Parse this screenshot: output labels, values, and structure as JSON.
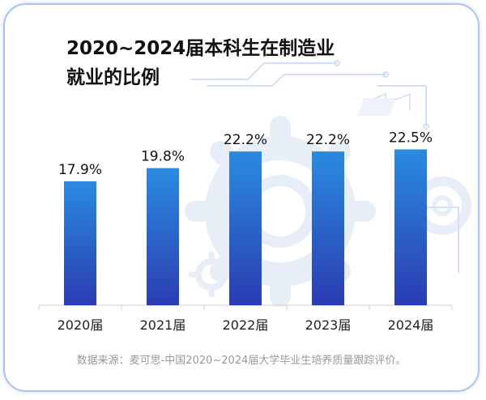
{
  "chart_data": {
    "type": "bar",
    "title_lines": [
      "2020~2024届本科生在制造业",
      "就业的比例"
    ],
    "categories": [
      "2020届",
      "2021届",
      "2022届",
      "2023届",
      "2024届"
    ],
    "values": [
      17.9,
      19.8,
      22.2,
      22.2,
      22.5
    ],
    "value_labels": [
      "17.9%",
      "19.8%",
      "22.2%",
      "22.2%",
      "22.5%"
    ],
    "ylim": [
      0,
      27
    ],
    "xlabel": "",
    "ylabel": "",
    "grid": false,
    "legend": "none"
  },
  "colors": {
    "bar_top": "#2a8bdf",
    "bar_bottom": "#2b3cb2",
    "frame": "#a9c6f0",
    "decor": "#e8eef8",
    "decor_line": "#d3e0f4"
  },
  "source_text": "数据来源：麦可思-中国2020~2024届大学毕业生培养质量跟踪评价。"
}
